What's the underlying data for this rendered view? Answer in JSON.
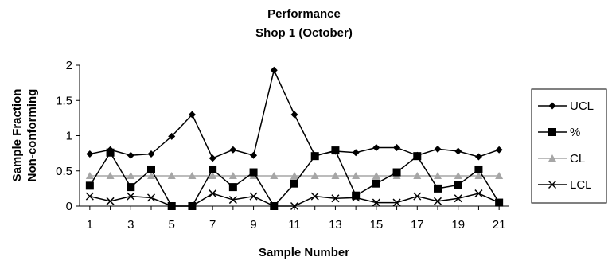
{
  "chart_data": {
    "type": "line",
    "title": "Performance",
    "subtitle": "Shop 1 (October)",
    "xlabel": "Sample Number",
    "ylabel_line1": "Sample Fraction",
    "ylabel_line2": "Non-conforming",
    "x": [
      1,
      2,
      3,
      4,
      5,
      6,
      7,
      8,
      9,
      10,
      11,
      12,
      13,
      14,
      15,
      16,
      17,
      18,
      19,
      20,
      21
    ],
    "x_tick_labels": [
      "1",
      "3",
      "5",
      "7",
      "9",
      "11",
      "13",
      "15",
      "17",
      "19",
      "21"
    ],
    "x_tick_values": [
      1,
      3,
      5,
      7,
      9,
      11,
      13,
      15,
      17,
      19,
      21
    ],
    "xlim": [
      0.5,
      21.5
    ],
    "y_tick_labels": [
      "0",
      "0.5",
      "1",
      "1.5",
      "2"
    ],
    "y_tick_values": [
      0,
      0.5,
      1,
      1.5,
      2
    ],
    "ylim": [
      0,
      2
    ],
    "grid": false,
    "legend_position": "right",
    "series": [
      {
        "name": "UCL",
        "marker": "diamond",
        "color": "#000000",
        "values": [
          0.74,
          0.8,
          0.72,
          0.74,
          0.99,
          1.3,
          0.68,
          0.8,
          0.72,
          1.93,
          1.3,
          0.72,
          0.78,
          0.76,
          0.83,
          0.83,
          0.72,
          0.81,
          0.78,
          0.7,
          0.8
        ]
      },
      {
        "name": "%",
        "marker": "square",
        "color": "#000000",
        "values": [
          0.29,
          0.76,
          0.27,
          0.52,
          0.0,
          0.0,
          0.52,
          0.27,
          0.48,
          0.0,
          0.32,
          0.71,
          0.79,
          0.15,
          0.32,
          0.48,
          0.71,
          0.25,
          0.3,
          0.52,
          0.05
        ]
      },
      {
        "name": "CL",
        "marker": "triangle",
        "color": "#a6a6a6",
        "values": [
          0.43,
          0.43,
          0.43,
          0.43,
          0.43,
          0.43,
          0.43,
          0.43,
          0.43,
          0.43,
          0.43,
          0.43,
          0.43,
          0.43,
          0.43,
          0.43,
          0.43,
          0.43,
          0.43,
          0.43,
          0.43
        ]
      },
      {
        "name": "LCL",
        "marker": "x",
        "color": "#000000",
        "values": [
          0.14,
          0.07,
          0.14,
          0.12,
          0.0,
          0.0,
          0.18,
          0.09,
          0.14,
          0.0,
          0.0,
          0.14,
          0.11,
          0.12,
          0.05,
          0.05,
          0.14,
          0.07,
          0.11,
          0.18,
          0.05
        ]
      }
    ]
  }
}
